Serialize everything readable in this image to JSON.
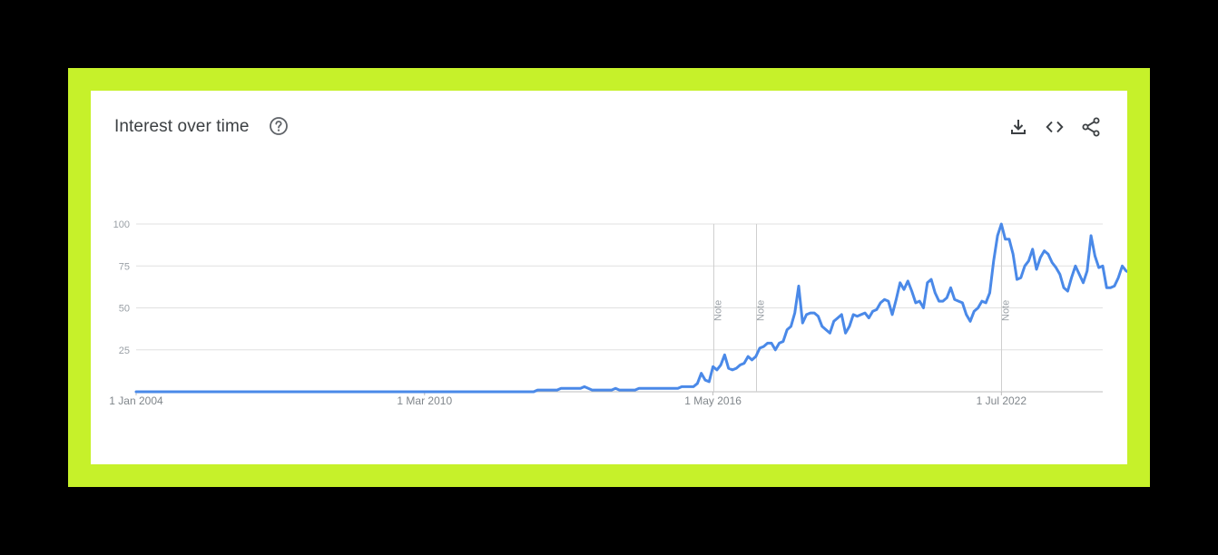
{
  "card": {
    "title": "Interest over time",
    "help_icon": "help-circle-icon",
    "tools": [
      {
        "name": "download-icon"
      },
      {
        "name": "embed-code-icon"
      },
      {
        "name": "share-icon"
      }
    ]
  },
  "colors": {
    "frame": "#c6f12a",
    "background": "#000000",
    "line": "#4a89e8",
    "grid": "#e0e0e0"
  },
  "chart_data": {
    "type": "line",
    "title": "Interest over time",
    "xlabel": "",
    "ylabel": "",
    "ylim": [
      0,
      100
    ],
    "xlim": [
      "2004-01",
      "2024-09"
    ],
    "y_ticks": [
      "25",
      "50",
      "75",
      "100"
    ],
    "x_tick_labels": [
      {
        "label": "1 Jan 2004",
        "date": "2004-01"
      },
      {
        "label": "1 Mar 2010",
        "date": "2010-03"
      },
      {
        "label": "1 May 2016",
        "date": "2016-05"
      },
      {
        "label": "1 Jul 2022",
        "date": "2022-07"
      }
    ],
    "notes": [
      {
        "label": "Note",
        "date": "2016-05"
      },
      {
        "label": "Note",
        "date": "2017-04"
      },
      {
        "label": "Note",
        "date": "2022-07"
      }
    ],
    "grid": true,
    "legend": "none",
    "series": [
      {
        "points": [
          [
            "2004-01",
            0
          ],
          [
            "2012-07",
            0
          ],
          [
            "2012-08",
            1
          ],
          [
            "2013-01",
            1
          ],
          [
            "2013-02",
            2
          ],
          [
            "2013-07",
            2
          ],
          [
            "2013-08",
            3
          ],
          [
            "2013-10",
            1
          ],
          [
            "2014-03",
            1
          ],
          [
            "2014-04",
            2
          ],
          [
            "2014-05",
            1
          ],
          [
            "2014-09",
            1
          ],
          [
            "2014-10",
            2
          ],
          [
            "2015-08",
            2
          ],
          [
            "2015-09",
            3
          ],
          [
            "2015-12",
            3
          ],
          [
            "2016-01",
            5
          ],
          [
            "2016-02",
            11
          ],
          [
            "2016-03",
            7
          ],
          [
            "2016-04",
            6
          ],
          [
            "2016-05",
            15
          ],
          [
            "2016-06",
            13
          ],
          [
            "2016-07",
            16
          ],
          [
            "2016-08",
            22
          ],
          [
            "2016-09",
            14
          ],
          [
            "2016-10",
            13
          ],
          [
            "2016-11",
            14
          ],
          [
            "2016-12",
            16
          ],
          [
            "2017-01",
            17
          ],
          [
            "2017-02",
            21
          ],
          [
            "2017-03",
            19
          ],
          [
            "2017-04",
            21
          ],
          [
            "2017-05",
            26
          ],
          [
            "2017-06",
            27
          ],
          [
            "2017-07",
            29
          ],
          [
            "2017-08",
            29
          ],
          [
            "2017-09",
            25
          ],
          [
            "2017-10",
            29
          ],
          [
            "2017-11",
            30
          ],
          [
            "2017-12",
            37
          ],
          [
            "2018-01",
            39
          ],
          [
            "2018-02",
            47
          ],
          [
            "2018-03",
            63
          ],
          [
            "2018-04",
            41
          ],
          [
            "2018-05",
            46
          ],
          [
            "2018-06",
            47
          ],
          [
            "2018-07",
            47
          ],
          [
            "2018-08",
            45
          ],
          [
            "2018-09",
            39
          ],
          [
            "2018-10",
            37
          ],
          [
            "2018-11",
            35
          ],
          [
            "2018-12",
            42
          ],
          [
            "2019-01",
            44
          ],
          [
            "2019-02",
            46
          ],
          [
            "2019-03",
            35
          ],
          [
            "2019-04",
            39
          ],
          [
            "2019-05",
            46
          ],
          [
            "2019-06",
            45
          ],
          [
            "2019-07",
            46
          ],
          [
            "2019-08",
            47
          ],
          [
            "2019-09",
            44
          ],
          [
            "2019-10",
            48
          ],
          [
            "2019-11",
            49
          ],
          [
            "2019-12",
            53
          ],
          [
            "2020-01",
            55
          ],
          [
            "2020-02",
            54
          ],
          [
            "2020-03",
            46
          ],
          [
            "2020-04",
            55
          ],
          [
            "2020-05",
            65
          ],
          [
            "2020-06",
            61
          ],
          [
            "2020-07",
            66
          ],
          [
            "2020-08",
            60
          ],
          [
            "2020-09",
            53
          ],
          [
            "2020-10",
            54
          ],
          [
            "2020-11",
            50
          ],
          [
            "2020-12",
            65
          ],
          [
            "2021-01",
            67
          ],
          [
            "2021-02",
            59
          ],
          [
            "2021-03",
            54
          ],
          [
            "2021-04",
            54
          ],
          [
            "2021-05",
            56
          ],
          [
            "2021-06",
            62
          ],
          [
            "2021-07",
            55
          ],
          [
            "2021-08",
            54
          ],
          [
            "2021-09",
            53
          ],
          [
            "2021-10",
            46
          ],
          [
            "2021-11",
            42
          ],
          [
            "2021-12",
            48
          ],
          [
            "2022-01",
            50
          ],
          [
            "2022-02",
            54
          ],
          [
            "2022-03",
            53
          ],
          [
            "2022-04",
            59
          ],
          [
            "2022-05",
            78
          ],
          [
            "2022-06",
            93
          ],
          [
            "2022-07",
            100
          ],
          [
            "2022-08",
            91
          ],
          [
            "2022-09",
            91
          ],
          [
            "2022-10",
            82
          ],
          [
            "2022-11",
            67
          ],
          [
            "2022-12",
            68
          ],
          [
            "2023-01",
            75
          ],
          [
            "2023-02",
            78
          ],
          [
            "2023-03",
            85
          ],
          [
            "2023-04",
            73
          ],
          [
            "2023-05",
            80
          ],
          [
            "2023-06",
            84
          ],
          [
            "2023-07",
            82
          ],
          [
            "2023-08",
            77
          ],
          [
            "2023-09",
            74
          ],
          [
            "2023-10",
            70
          ],
          [
            "2023-11",
            62
          ],
          [
            "2023-12",
            60
          ],
          [
            "2024-01",
            68
          ],
          [
            "2024-02",
            75
          ],
          [
            "2024-03",
            70
          ],
          [
            "2024-04",
            65
          ],
          [
            "2024-05",
            72
          ],
          [
            "2024-06",
            93
          ],
          [
            "2024-07",
            81
          ],
          [
            "2024-08",
            74
          ],
          [
            "2024-09",
            75
          ],
          [
            "2024-10",
            62
          ],
          [
            "2024-11",
            62
          ],
          [
            "2024-12",
            63
          ],
          [
            "2025-01",
            68
          ],
          [
            "2025-02",
            75
          ],
          [
            "2025-03",
            72
          ],
          [
            "2025-04",
            71
          ]
        ]
      }
    ]
  }
}
